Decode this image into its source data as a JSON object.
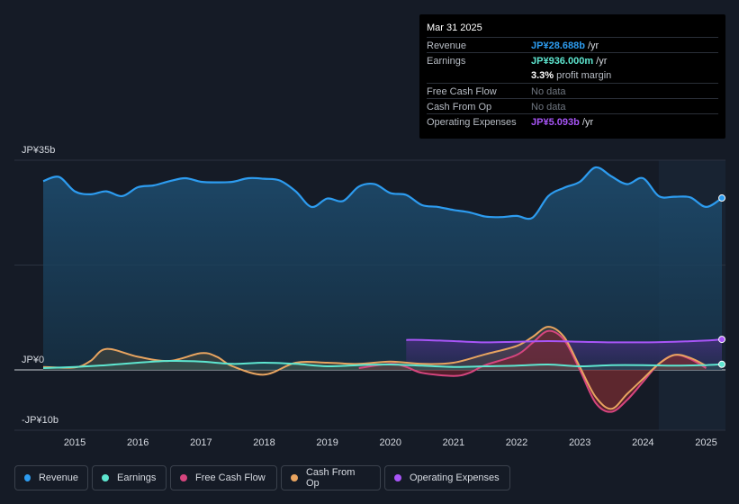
{
  "tooltip": {
    "date": "Mar 31 2025",
    "rows": [
      {
        "label": "Revenue",
        "value": "JP¥28.688b",
        "suffix": " /yr",
        "color": "#2d9cf0"
      },
      {
        "label": "Earnings",
        "value": "JP¥936.000m",
        "suffix": " /yr",
        "color": "#5ee6d0"
      },
      {
        "label": "",
        "value": "3.3%",
        "suffix": " profit margin",
        "color": "#ffffff"
      },
      {
        "label": "Free Cash Flow",
        "value": "No data",
        "suffix": "",
        "color": "#6f7680"
      },
      {
        "label": "Cash From Op",
        "value": "No data",
        "suffix": "",
        "color": "#6f7680"
      },
      {
        "label": "Operating Expenses",
        "value": "JP¥5.093b",
        "suffix": " /yr",
        "color": "#a855f7"
      }
    ]
  },
  "legend": [
    {
      "label": "Revenue",
      "color": "#2d9cf0"
    },
    {
      "label": "Earnings",
      "color": "#5ee6d0"
    },
    {
      "label": "Free Cash Flow",
      "color": "#d6457e"
    },
    {
      "label": "Cash From Op",
      "color": "#e8a460"
    },
    {
      "label": "Operating Expenses",
      "color": "#a855f7"
    }
  ],
  "chart_data": {
    "type": "area",
    "title": "",
    "ylabels": [
      "JP¥35b",
      "JP¥0",
      "-JP¥10b"
    ],
    "ylim": [
      -10,
      35
    ],
    "xlim": [
      2014.5,
      2025.25
    ],
    "xticks": [
      2015,
      2016,
      2017,
      2018,
      2019,
      2020,
      2021,
      2022,
      2023,
      2024,
      2025
    ],
    "forecast_start": 2024.25,
    "series": [
      {
        "name": "Revenue",
        "color": "#2d9cf0",
        "x": [
          2014.5,
          2014.75,
          2015.0,
          2015.25,
          2015.5,
          2015.75,
          2016.0,
          2016.25,
          2016.5,
          2016.75,
          2017.0,
          2017.25,
          2017.5,
          2017.75,
          2018.0,
          2018.25,
          2018.5,
          2018.75,
          2019.0,
          2019.25,
          2019.5,
          2019.75,
          2020.0,
          2020.25,
          2020.5,
          2020.75,
          2021.0,
          2021.25,
          2021.5,
          2021.75,
          2022.0,
          2022.25,
          2022.5,
          2022.75,
          2023.0,
          2023.25,
          2023.5,
          2023.75,
          2024.0,
          2024.25,
          2024.5,
          2024.75,
          2025.0,
          2025.25
        ],
        "values": [
          31.5,
          32.2,
          29.8,
          29.3,
          29.8,
          29.0,
          30.5,
          30.8,
          31.5,
          32.0,
          31.4,
          31.3,
          31.4,
          32.0,
          31.9,
          31.6,
          29.8,
          27.2,
          28.6,
          28.2,
          30.6,
          31.0,
          29.5,
          29.2,
          27.5,
          27.2,
          26.7,
          26.3,
          25.6,
          25.5,
          25.7,
          25.4,
          29.0,
          30.4,
          31.4,
          33.8,
          32.3,
          31.0,
          32.0,
          29.0,
          28.9,
          28.8,
          27.2,
          28.688
        ]
      },
      {
        "name": "Earnings",
        "color": "#5ee6d0",
        "x": [
          2014.5,
          2015.0,
          2015.5,
          2016.0,
          2016.5,
          2017.0,
          2017.5,
          2018.0,
          2018.5,
          2019.0,
          2019.5,
          2020.0,
          2020.5,
          2021.0,
          2021.5,
          2022.0,
          2022.5,
          2023.0,
          2023.5,
          2024.0,
          2024.5,
          2025.0,
          2025.25
        ],
        "values": [
          0.3,
          0.5,
          0.8,
          1.2,
          1.5,
          1.4,
          1.0,
          1.2,
          1.0,
          0.6,
          0.8,
          0.9,
          0.7,
          0.5,
          0.6,
          0.7,
          0.9,
          0.6,
          0.8,
          0.8,
          0.7,
          0.8,
          0.936
        ]
      },
      {
        "name": "Free Cash Flow",
        "color": "#d6457e",
        "x": [
          2019.5,
          2020.0,
          2020.25,
          2020.5,
          2021.0,
          2021.25,
          2021.5,
          2022.0,
          2022.25,
          2022.5,
          2022.75,
          2023.0,
          2023.25,
          2023.5,
          2023.75,
          2024.0,
          2024.25,
          2024.5,
          2024.75,
          2025.0
        ],
        "values": [
          0.3,
          1.0,
          0.5,
          -0.5,
          -1.0,
          -0.5,
          0.8,
          2.5,
          4.5,
          6.5,
          5.0,
          0.0,
          -5.5,
          -7.0,
          -5.0,
          -2.0,
          1.0,
          2.5,
          1.8,
          0.3
        ]
      },
      {
        "name": "Cash From Op",
        "color": "#e8a460",
        "x": [
          2014.5,
          2015.0,
          2015.25,
          2015.5,
          2016.0,
          2016.5,
          2017.0,
          2017.25,
          2017.5,
          2018.0,
          2018.5,
          2019.0,
          2019.5,
          2020.0,
          2020.5,
          2021.0,
          2021.5,
          2022.0,
          2022.25,
          2022.5,
          2022.75,
          2023.0,
          2023.25,
          2023.5,
          2023.75,
          2024.0,
          2024.25,
          2024.5,
          2024.75,
          2025.0
        ],
        "values": [
          0.5,
          0.4,
          1.5,
          3.5,
          2.2,
          1.5,
          2.8,
          2.2,
          0.6,
          -0.8,
          1.2,
          1.2,
          1.0,
          1.4,
          1.0,
          1.2,
          2.6,
          4.0,
          5.5,
          7.2,
          5.5,
          0.5,
          -4.5,
          -6.5,
          -4.0,
          -1.5,
          1.0,
          2.5,
          2.0,
          0.7
        ]
      },
      {
        "name": "Operating Expenses",
        "color": "#a855f7",
        "x": [
          2020.25,
          2020.5,
          2021.0,
          2021.5,
          2022.0,
          2022.5,
          2023.0,
          2023.5,
          2024.0,
          2024.5,
          2025.0,
          2025.25
        ],
        "values": [
          5.0,
          5.0,
          4.8,
          4.6,
          4.7,
          4.8,
          4.7,
          4.6,
          4.6,
          4.7,
          4.9,
          5.093
        ]
      }
    ]
  }
}
